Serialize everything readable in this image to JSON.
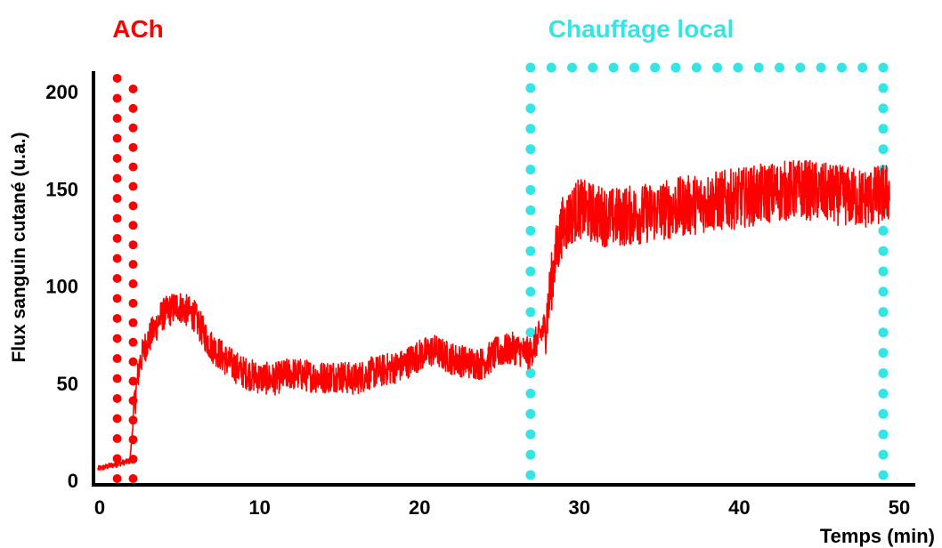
{
  "chart_data": {
    "type": "line",
    "title": "",
    "xlabel": "Temps (min)",
    "ylabel": "Flux sanguin cutané (u.a.)",
    "xlim": [
      0,
      50
    ],
    "ylim": [
      0,
      200
    ],
    "x_ticks": [
      "0",
      "10",
      "20",
      "30",
      "40",
      "50"
    ],
    "y_ticks": [
      "0",
      "50",
      "100",
      "150",
      "200"
    ],
    "grid": false,
    "legend": "none",
    "series": [
      {
        "color": "#ff0000",
        "x": [
          0,
          1,
          2,
          2.3,
          2.6,
          3,
          4,
          5,
          6,
          7,
          8,
          9,
          10,
          11,
          12,
          13,
          14,
          15,
          16,
          17,
          18,
          19,
          20,
          21,
          22,
          23,
          24,
          25,
          26,
          27,
          28,
          28.5,
          29,
          30,
          32,
          34,
          36,
          38,
          40,
          42,
          44,
          46,
          48,
          49.5
        ],
        "y": [
          6,
          8,
          10,
          40,
          60,
          70,
          85,
          90,
          85,
          70,
          62,
          56,
          53,
          52,
          55,
          54,
          53,
          54,
          52,
          55,
          57,
          59,
          64,
          67,
          63,
          61,
          60,
          66,
          68,
          65,
          80,
          110,
          130,
          140,
          135,
          137,
          140,
          143,
          145,
          148,
          150,
          147,
          145,
          148
        ],
        "noise": 12
      }
    ],
    "annotations": [
      {
        "label": "ACh",
        "color": "#ff0000",
        "x_start": 1.2,
        "x_end": 2.2
      },
      {
        "label": "Chauffage local",
        "color": "#33e5e5",
        "x_start": 27,
        "x_end": 49
      }
    ]
  }
}
